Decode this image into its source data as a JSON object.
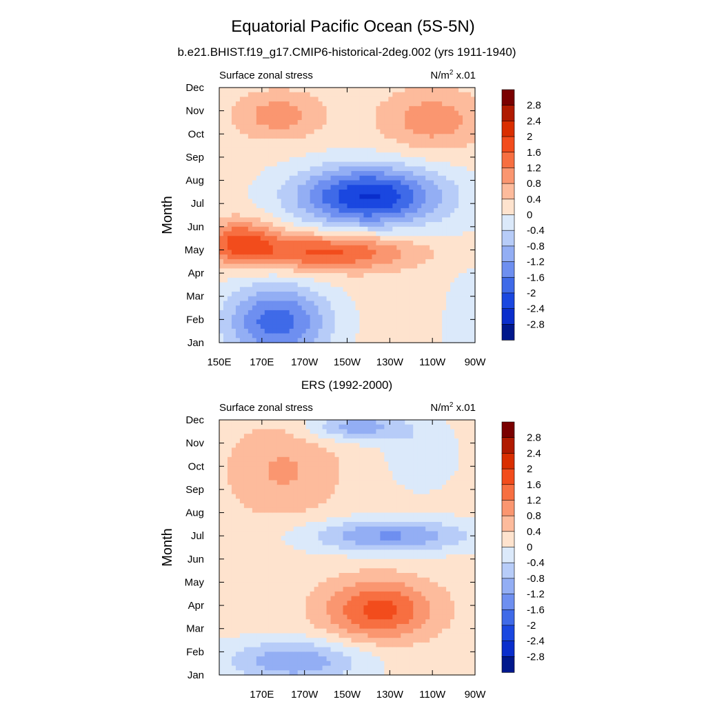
{
  "title": "Equatorial Pacific Ocean (5S-5N)",
  "chart_data": [
    {
      "type": "heatmap",
      "title": "b.e21.BHIST.f19_g17.CMIP6-historical-2deg.002 (yrs 1911-1940)",
      "left_label": "Surface zonal stress",
      "right_label": "N/m",
      "right_label_sup": "2",
      "right_label_suffix": " x.01",
      "xlabel": "",
      "ylabel": "Month",
      "x_ticks": [
        "150E",
        "170E",
        "170W",
        "150W",
        "130W",
        "110W",
        "90W"
      ],
      "x_tick_values": [
        150,
        170,
        190,
        210,
        230,
        250,
        270
      ],
      "xlim": [
        150,
        270
      ],
      "y_ticks": [
        "Jan",
        "Feb",
        "Mar",
        "Apr",
        "May",
        "Jun",
        "Jul",
        "Aug",
        "Sep",
        "Oct",
        "Nov",
        "Dec"
      ],
      "ylim": [
        1,
        12
      ],
      "contour_levels": [
        -2.8,
        -2.4,
        -2,
        -1.6,
        -1.2,
        -0.8,
        -0.4,
        0,
        0.4,
        0.8,
        1.2,
        1.6,
        2,
        2.4,
        2.8
      ],
      "features": [
        {
          "lon": 177,
          "month": 1.9,
          "value": -2.0,
          "rx": 24,
          "ry": 1.6
        },
        {
          "lon": 220,
          "month": 7.3,
          "value": -2.6,
          "rx": 34,
          "ry": 1.3
        },
        {
          "lon": 200,
          "month": 4.9,
          "value": 1.6,
          "rx": 40,
          "ry": 0.8
        },
        {
          "lon": 160,
          "month": 5.4,
          "value": 1.4,
          "rx": 16,
          "ry": 0.9
        },
        {
          "lon": 178,
          "month": 10.8,
          "value": 0.9,
          "rx": 20,
          "ry": 1.0
        },
        {
          "lon": 250,
          "month": 10.6,
          "value": 0.9,
          "rx": 24,
          "ry": 1.3
        },
        {
          "lon": 270,
          "month": 1.5,
          "value": -0.3,
          "rx": 18,
          "ry": 4.0
        }
      ]
    },
    {
      "type": "heatmap",
      "title": "ERS (1992-2000)",
      "left_label": "Surface zonal stress",
      "right_label": "N/m",
      "right_label_sup": "2",
      "right_label_suffix": " x.01",
      "xlabel": "",
      "ylabel": "Month",
      "x_ticks": [
        "170E",
        "170W",
        "150W",
        "130W",
        "110W",
        "90W"
      ],
      "x_tick_values": [
        170,
        190,
        210,
        230,
        250,
        270
      ],
      "xlim": [
        150,
        270
      ],
      "y_ticks": [
        "Jan",
        "Feb",
        "Mar",
        "Apr",
        "May",
        "Jun",
        "Jul",
        "Aug",
        "Sep",
        "Oct",
        "Nov",
        "Dec"
      ],
      "ylim": [
        1,
        12
      ],
      "contour_levels": [
        -2.8,
        -2.4,
        -2,
        -1.6,
        -1.2,
        -0.8,
        -0.4,
        0,
        0.4,
        0.8,
        1.2,
        1.6,
        2,
        2.4,
        2.8
      ],
      "features": [
        {
          "lon": 185,
          "month": 1.6,
          "value": -1.3,
          "rx": 32,
          "ry": 0.9
        },
        {
          "lon": 230,
          "month": 7.0,
          "value": -1.4,
          "rx": 38,
          "ry": 0.7
        },
        {
          "lon": 215,
          "month": 11.7,
          "value": -1.2,
          "rx": 22,
          "ry": 0.6
        },
        {
          "lon": 225,
          "month": 3.8,
          "value": 1.6,
          "rx": 26,
          "ry": 1.3
        },
        {
          "lon": 180,
          "month": 9.8,
          "value": 0.7,
          "rx": 26,
          "ry": 2.0
        },
        {
          "lon": 245,
          "month": 10.5,
          "value": -0.5,
          "rx": 16,
          "ry": 1.5
        }
      ]
    }
  ],
  "colorbar": {
    "labels": [
      "2.8",
      "2.4",
      "2",
      "1.6",
      "1.2",
      "0.8",
      "0.4",
      "0",
      "-0.4",
      "-0.8",
      "-1.2",
      "-1.6",
      "-2",
      "-2.4",
      "-2.8"
    ],
    "colors": [
      "#7a0000",
      "#b01a00",
      "#d92e00",
      "#f24c1c",
      "#f76f41",
      "#fa9670",
      "#fdbb9c",
      "#fee3ce",
      "#dbe9fa",
      "#b7ccf8",
      "#93aef4",
      "#6e8ff0",
      "#3f6ae8",
      "#1a47e0",
      "#0a2ecc",
      "#00188c"
    ]
  }
}
